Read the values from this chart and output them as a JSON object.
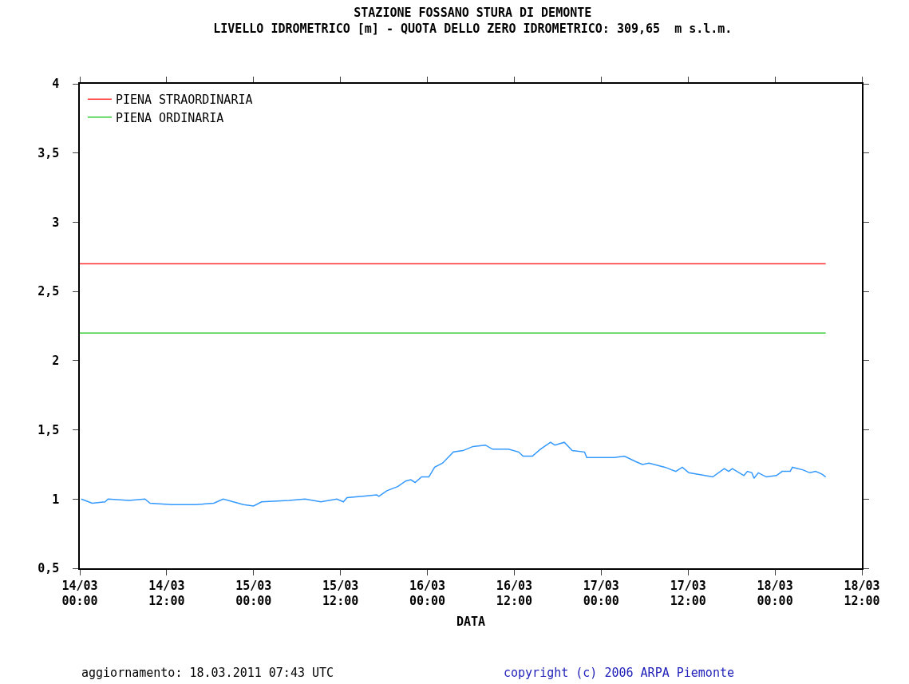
{
  "chart_data": {
    "type": "line",
    "title": "STAZIONE FOSSANO STURA DI DEMONTE",
    "subtitle": "LIVELLO IDROMETRICO [m] - QUOTA DELLO ZERO IDROMETRICO: 309,65  m s.l.m.",
    "xlabel": "DATA",
    "annotations": [
      "aggiornamento: 18.03.2011 07:43 UTC",
      "copyright (c) 2006 ARPA Piemonte"
    ],
    "xlim": [
      "2011-03-14T00:00",
      "2011-03-18T12:00"
    ],
    "xticks": [
      {
        "value": "2011-03-14T00:00",
        "label": "14/03\n00:00"
      },
      {
        "value": "2011-03-14T12:00",
        "label": "14/03\n12:00"
      },
      {
        "value": "2011-03-15T00:00",
        "label": "15/03\n00:00"
      },
      {
        "value": "2011-03-15T12:00",
        "label": "15/03\n12:00"
      },
      {
        "value": "2011-03-16T00:00",
        "label": "16/03\n00:00"
      },
      {
        "value": "2011-03-16T12:00",
        "label": "16/03\n12:00"
      },
      {
        "value": "2011-03-17T00:00",
        "label": "17/03\n00:00"
      },
      {
        "value": "2011-03-17T12:00",
        "label": "17/03\n12:00"
      },
      {
        "value": "2011-03-18T00:00",
        "label": "18/03\n00:00"
      },
      {
        "value": "2011-03-18T12:00",
        "label": "18/03\n12:00"
      }
    ],
    "ylim": [
      0.5,
      4
    ],
    "yticks": [
      {
        "value": 0.5,
        "label": "0,5"
      },
      1,
      {
        "value": 1.5,
        "label": "1,5"
      },
      2,
      {
        "value": 2.5,
        "label": "2,5"
      },
      3,
      {
        "value": 3.5,
        "label": "3,5"
      },
      4
    ],
    "grid": false,
    "legend": "top left",
    "line_style": "solid",
    "marker": "none",
    "series": [
      {
        "name": "PIENA STRAORDINARIA",
        "color": "#ff3333",
        "x": [
          "2011-03-14T00:00",
          "2011-03-18T07:00"
        ],
        "values": [
          2.7,
          2.7
        ]
      },
      {
        "name": "PIENA ORDINARIA",
        "color": "#33cc33",
        "x": [
          "2011-03-14T00:00",
          "2011-03-18T07:00"
        ],
        "values": [
          2.2,
          2.2
        ]
      },
      {
        "color": "#3399ff",
        "x": [
          "2011-03-14T00:12",
          "2011-03-14T01:42",
          "2011-03-14T03:30",
          "2011-03-14T03:54",
          "2011-03-14T06:48",
          "2011-03-14T09:00",
          "2011-03-14T09:42",
          "2011-03-14T12:42",
          "2011-03-14T16:00",
          "2011-03-14T18:30",
          "2011-03-14T19:48",
          "2011-03-14T22:36",
          "2011-03-15T00:00",
          "2011-03-15T01:06",
          "2011-03-15T04:54",
          "2011-03-15T07:06",
          "2011-03-15T09:18",
          "2011-03-15T11:30",
          "2011-03-15T12:24",
          "2011-03-15T12:54",
          "2011-03-15T15:06",
          "2011-03-15T17:00",
          "2011-03-15T17:18",
          "2011-03-15T18:24",
          "2011-03-15T19:54",
          "2011-03-15T21:00",
          "2011-03-15T21:42",
          "2011-03-15T22:18",
          "2011-03-15T23:12",
          "2011-03-16T00:12",
          "2011-03-16T01:00",
          "2011-03-16T02:06",
          "2011-03-16T03:36",
          "2011-03-16T04:54",
          "2011-03-16T06:18",
          "2011-03-16T08:00",
          "2011-03-16T09:00",
          "2011-03-16T11:12",
          "2011-03-16T12:36",
          "2011-03-16T13:12",
          "2011-03-16T14:30",
          "2011-03-16T15:36",
          "2011-03-16T17:00",
          "2011-03-16T17:36",
          "2011-03-16T18:54",
          "2011-03-16T20:00",
          "2011-03-16T21:42",
          "2011-03-16T22:00",
          "2011-03-17T00:12",
          "2011-03-17T01:48",
          "2011-03-17T03:12",
          "2011-03-17T04:48",
          "2011-03-17T05:42",
          "2011-03-17T06:36",
          "2011-03-17T08:48",
          "2011-03-17T10:18",
          "2011-03-17T11:12",
          "2011-03-17T12:06",
          "2011-03-17T15:24",
          "2011-03-17T17:00",
          "2011-03-17T17:36",
          "2011-03-17T18:06",
          "2011-03-17T19:42",
          "2011-03-17T20:12",
          "2011-03-17T20:48",
          "2011-03-17T21:06",
          "2011-03-17T21:42",
          "2011-03-17T22:48",
          "2011-03-18T00:12",
          "2011-03-18T01:00",
          "2011-03-18T02:06",
          "2011-03-18T02:24",
          "2011-03-18T03:54",
          "2011-03-18T04:48",
          "2011-03-18T05:36",
          "2011-03-18T06:30",
          "2011-03-18T07:00"
        ],
        "values": [
          1.0,
          0.97,
          0.98,
          1.0,
          0.99,
          1.0,
          0.97,
          0.96,
          0.96,
          0.97,
          1.0,
          0.96,
          0.95,
          0.98,
          0.99,
          1.0,
          0.98,
          1.0,
          0.98,
          1.01,
          1.02,
          1.03,
          1.02,
          1.06,
          1.09,
          1.13,
          1.14,
          1.12,
          1.16,
          1.16,
          1.23,
          1.26,
          1.34,
          1.35,
          1.38,
          1.39,
          1.36,
          1.36,
          1.34,
          1.31,
          1.31,
          1.36,
          1.41,
          1.39,
          1.41,
          1.35,
          1.34,
          1.3,
          1.3,
          1.3,
          1.31,
          1.27,
          1.25,
          1.26,
          1.23,
          1.2,
          1.23,
          1.19,
          1.16,
          1.22,
          1.2,
          1.22,
          1.17,
          1.2,
          1.19,
          1.15,
          1.19,
          1.16,
          1.17,
          1.2,
          1.2,
          1.23,
          1.21,
          1.19,
          1.2,
          1.18,
          1.16
        ]
      }
    ]
  }
}
